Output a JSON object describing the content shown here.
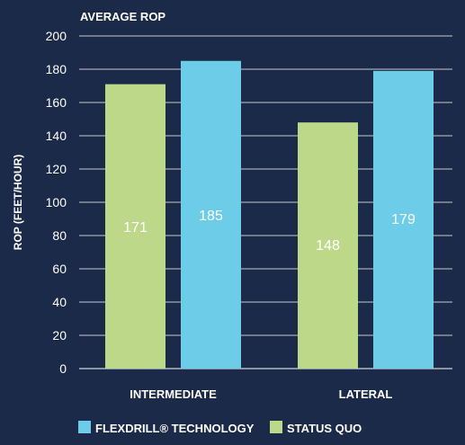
{
  "chart_data": {
    "type": "bar",
    "title": "AVERAGE ROP",
    "ylabel": "ROP (FEET/HOUR)",
    "xlabel": "",
    "ylim": [
      0,
      200
    ],
    "yticks": [
      0,
      20,
      40,
      60,
      80,
      100,
      120,
      140,
      160,
      180,
      200
    ],
    "categories": [
      "INTERMEDIATE",
      "LATERAL"
    ],
    "series": [
      {
        "name": "STATUS QUO",
        "color": "#bcd888",
        "values": [
          171,
          148
        ],
        "labels": [
          "171",
          "148"
        ]
      },
      {
        "name": "FLEXDRILL® TECHNOLOGY",
        "color": "#6dcde8",
        "values": [
          185,
          179
        ],
        "labels": [
          "185",
          "179"
        ]
      }
    ],
    "legend": [
      {
        "label": "FLEXDRILL® TECHNOLOGY",
        "color": "#6dcde8"
      },
      {
        "label": "STATUS QUO",
        "color": "#bcd888"
      }
    ],
    "grid": true,
    "legend_position": "bottom",
    "background": "#1b2a48",
    "text_color": "#ffffff"
  }
}
